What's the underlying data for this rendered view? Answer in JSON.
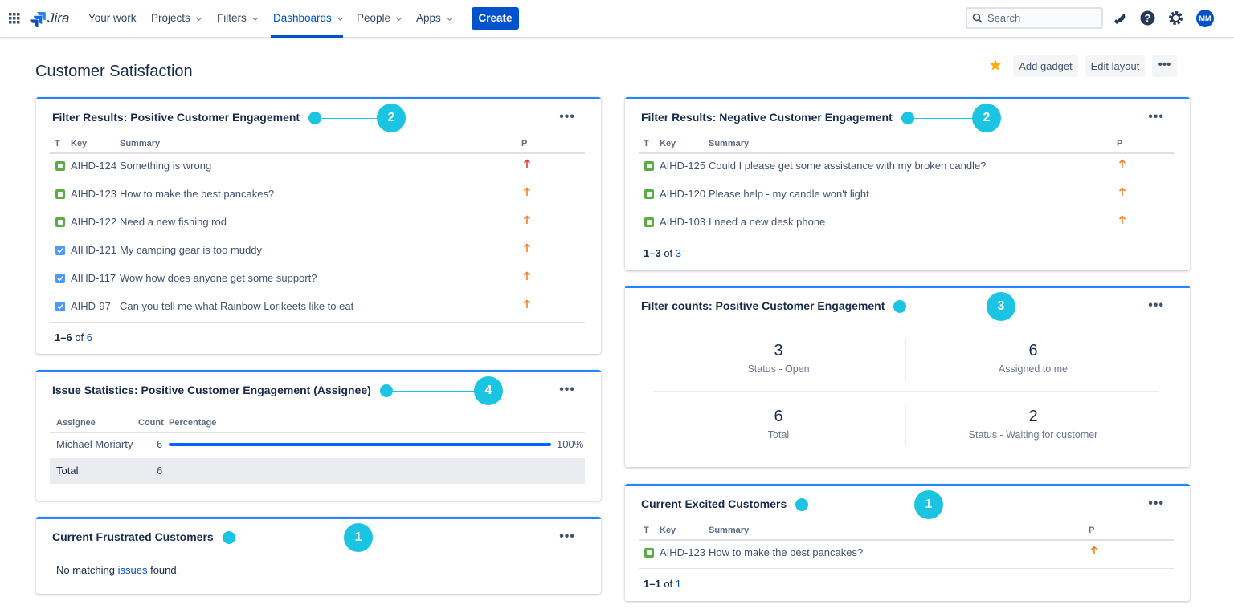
{
  "nav": {
    "logo": "Jira",
    "items": [
      {
        "label": "Your work",
        "dropdown": false,
        "active": false
      },
      {
        "label": "Projects",
        "dropdown": true,
        "active": false
      },
      {
        "label": "Filters",
        "dropdown": true,
        "active": false
      },
      {
        "label": "Dashboards",
        "dropdown": true,
        "active": true
      },
      {
        "label": "People",
        "dropdown": true,
        "active": false
      },
      {
        "label": "Apps",
        "dropdown": true,
        "active": false
      }
    ],
    "create": "Create",
    "search": "Search",
    "avatar": "MM"
  },
  "header": {
    "title": "Customer Satisfaction",
    "actions": [
      "Add gadget",
      "Edit layout"
    ],
    "starred": true
  },
  "gadgets": [
    {
      "kind": "table",
      "title": "Filter Results: Positive Customer Engagement",
      "annotation": "2",
      "columns": [
        "T",
        "Key",
        "Summary",
        "P"
      ],
      "rows": [
        {
          "icon": "request",
          "key": "AIHD-124",
          "summary": "Something is wrong",
          "priority_color": "#d04437"
        },
        {
          "icon": "request",
          "key": "AIHD-123",
          "summary": "How to make the best pancakes?",
          "priority_color": "#f0802a"
        },
        {
          "icon": "request",
          "key": "AIHD-122",
          "summary": "Need a new fishing rod",
          "priority_color": "#f0802a"
        },
        {
          "icon": "task",
          "key": "AIHD-121",
          "summary": "My camping gear is too muddy",
          "priority_color": "#f0802a"
        },
        {
          "icon": "task",
          "key": "AIHD-117",
          "summary": "Wow how does anyone get some support?",
          "priority_color": "#f0802a"
        },
        {
          "icon": "task",
          "key": "AIHD-97",
          "summary": "Can you tell me what Rainbow Lorikeets like to eat",
          "priority_color": "#f0802a"
        }
      ],
      "pagination": {
        "range": "1–6",
        "of": "of",
        "total": "6"
      }
    },
    {
      "kind": "stats",
      "title": "Issue Statistics: Positive Customer Engagement (Assignee)",
      "annotation": "4",
      "columns": [
        "Assignee",
        "Count",
        "Percentage"
      ],
      "rows": [
        {
          "name": "Michael Moriarty",
          "count": "6",
          "percentage": {
            "value": 100,
            "label": "100%"
          }
        }
      ],
      "total": {
        "label": "Total",
        "count": "6"
      }
    },
    {
      "kind": "empty",
      "title": "Current Frustrated Customers",
      "annotation": "1",
      "message": {
        "before": "No matching",
        "link": "issues",
        "after": "found."
      }
    },
    {
      "kind": "table",
      "title": "Filter Results: Negative Customer Engagement",
      "annotation": "2",
      "columns": [
        "T",
        "Key",
        "Summary",
        "P"
      ],
      "rows": [
        {
          "icon": "request",
          "key": "AIHD-125",
          "summary": "Could I please get some assistance with my broken candle?",
          "priority_color": "#f0802a"
        },
        {
          "icon": "request",
          "key": "AIHD-120",
          "summary": "Please help - my candle won't light",
          "priority_color": "#f0802a"
        },
        {
          "icon": "request",
          "key": "AIHD-103",
          "summary": "I need a new desk phone",
          "priority_color": "#f0802a"
        }
      ],
      "pagination": {
        "range": "1–3",
        "of": "of",
        "total": "3"
      }
    },
    {
      "kind": "counts",
      "title": "Filter counts: Positive Customer Engagement",
      "annotation": "3",
      "items": [
        {
          "value": "3",
          "label": "Status - Open"
        },
        {
          "value": "6",
          "label": "Assigned to me"
        },
        {
          "value": "6",
          "label": "Total"
        },
        {
          "value": "2",
          "label": "Status - Waiting for customer"
        }
      ]
    },
    {
      "kind": "table",
      "title": "Current Excited Customers",
      "annotation": "1",
      "columns": [
        "T",
        "Key",
        "Summary",
        "P"
      ],
      "rows": [
        {
          "icon": "request",
          "key": "AIHD-123",
          "summary": "How to make the best pancakes?",
          "priority_color": "#f0802a"
        }
      ],
      "pagination": {
        "range": "1–1",
        "of": "of",
        "total": "1"
      }
    }
  ]
}
